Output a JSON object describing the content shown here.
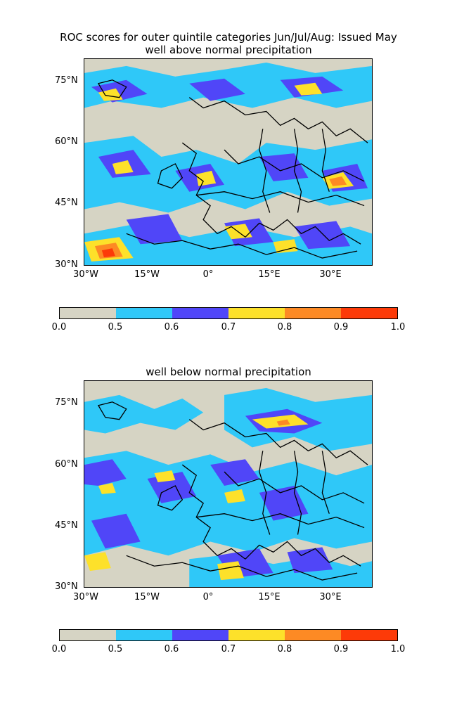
{
  "figure": {
    "title_line1": "ROC scores for outer quintile categories Jun/Jul/Aug: Issued May",
    "panels": [
      {
        "subtitle": "well above normal precipitation",
        "x_ticks": [
          "30°W",
          "15°W",
          "0°",
          "15°E",
          "30°E"
        ],
        "y_ticks": [
          "75°N",
          "60°N",
          "45°N",
          "30°N"
        ]
      },
      {
        "subtitle": "well below normal precipitation",
        "x_ticks": [
          "30°W",
          "15°W",
          "0°",
          "15°E",
          "30°E"
        ],
        "y_ticks": [
          "75°N",
          "60°N",
          "45°N",
          "30°N"
        ]
      }
    ],
    "colorbar": {
      "tick_labels": [
        "0.0",
        "0.5",
        "0.6",
        "0.7",
        "0.8",
        "0.9",
        "1.0"
      ],
      "colors": [
        "#d6d4c4",
        "#2fc8f8",
        "#5046f8",
        "#fde12a",
        "#fd8a24",
        "#fd3a08"
      ]
    }
  }
}
